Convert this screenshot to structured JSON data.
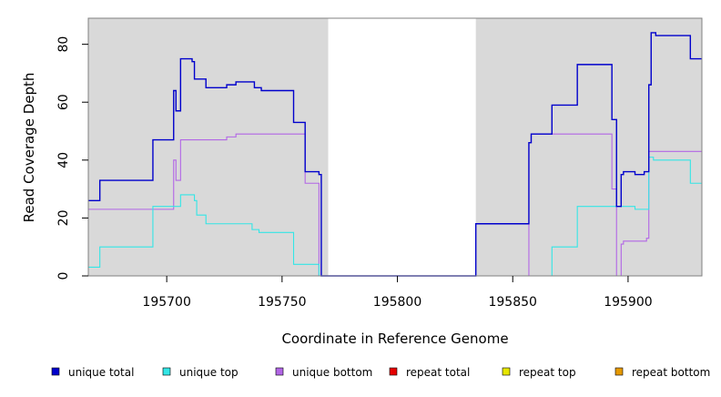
{
  "chart_data": {
    "type": "line",
    "xlabel": "Coordinate in Reference Genome",
    "ylabel": "Read Coverage Depth",
    "xlim": [
      195666,
      195932
    ],
    "ylim": [
      0,
      89
    ],
    "x_ticks": [
      195700,
      195750,
      195800,
      195850,
      195900
    ],
    "x_tick_labels": [
      "195700",
      "195750",
      "195800",
      "195850",
      "195900"
    ],
    "y_ticks": [
      0,
      20,
      40,
      60,
      80
    ],
    "y_tick_labels": [
      "0",
      "20",
      "40",
      "60",
      "80"
    ],
    "shaded_regions": [
      [
        195666,
        195770
      ],
      [
        195834,
        195932
      ]
    ],
    "background_shade_color": "#d9d9d9",
    "legend_placement": "bottom",
    "series": [
      {
        "name": "unique total",
        "color": "#0000cc",
        "points": [
          [
            195666,
            26
          ],
          [
            195671,
            26
          ],
          [
            195671,
            33
          ],
          [
            195694,
            33
          ],
          [
            195694,
            47
          ],
          [
            195703,
            47
          ],
          [
            195703,
            64
          ],
          [
            195704,
            64
          ],
          [
            195704,
            57
          ],
          [
            195706,
            57
          ],
          [
            195706,
            75
          ],
          [
            195711,
            75
          ],
          [
            195711,
            74
          ],
          [
            195712,
            74
          ],
          [
            195712,
            68
          ],
          [
            195717,
            68
          ],
          [
            195717,
            65
          ],
          [
            195726,
            65
          ],
          [
            195726,
            66
          ],
          [
            195730,
            66
          ],
          [
            195730,
            67
          ],
          [
            195738,
            67
          ],
          [
            195738,
            65
          ],
          [
            195741,
            65
          ],
          [
            195741,
            64
          ],
          [
            195755,
            64
          ],
          [
            195755,
            53
          ],
          [
            195760,
            53
          ],
          [
            195760,
            36
          ],
          [
            195766,
            36
          ],
          [
            195766,
            35
          ],
          [
            195767,
            35
          ],
          [
            195767,
            0
          ],
          [
            195834,
            0
          ],
          [
            195834,
            18
          ],
          [
            195857,
            18
          ],
          [
            195857,
            46
          ],
          [
            195858,
            46
          ],
          [
            195858,
            49
          ],
          [
            195867,
            49
          ],
          [
            195867,
            59
          ],
          [
            195878,
            59
          ],
          [
            195878,
            73
          ],
          [
            195893,
            73
          ],
          [
            195893,
            54
          ],
          [
            195895,
            54
          ],
          [
            195895,
            24
          ],
          [
            195897,
            24
          ],
          [
            195897,
            35
          ],
          [
            195898,
            35
          ],
          [
            195898,
            36
          ],
          [
            195903,
            36
          ],
          [
            195903,
            35
          ],
          [
            195907,
            35
          ],
          [
            195907,
            36
          ],
          [
            195909,
            36
          ],
          [
            195909,
            66
          ],
          [
            195910,
            66
          ],
          [
            195910,
            84
          ],
          [
            195912,
            84
          ],
          [
            195912,
            83
          ],
          [
            195927,
            83
          ],
          [
            195927,
            75
          ],
          [
            195932,
            75
          ]
        ]
      },
      {
        "name": "unique top",
        "color": "#33e6e6",
        "points": [
          [
            195666,
            3
          ],
          [
            195671,
            3
          ],
          [
            195671,
            10
          ],
          [
            195694,
            10
          ],
          [
            195694,
            24
          ],
          [
            195706,
            24
          ],
          [
            195706,
            28
          ],
          [
            195712,
            28
          ],
          [
            195712,
            26
          ],
          [
            195713,
            26
          ],
          [
            195713,
            21
          ],
          [
            195717,
            21
          ],
          [
            195717,
            18
          ],
          [
            195737,
            18
          ],
          [
            195737,
            16
          ],
          [
            195740,
            16
          ],
          [
            195740,
            15
          ],
          [
            195755,
            15
          ],
          [
            195755,
            4
          ],
          [
            195766,
            4
          ],
          [
            195766,
            0
          ],
          [
            195867,
            0
          ],
          [
            195867,
            10
          ],
          [
            195878,
            10
          ],
          [
            195878,
            24
          ],
          [
            195903,
            24
          ],
          [
            195903,
            23
          ],
          [
            195909,
            23
          ],
          [
            195909,
            41
          ],
          [
            195911,
            41
          ],
          [
            195911,
            40
          ],
          [
            195927,
            40
          ],
          [
            195927,
            32
          ],
          [
            195932,
            32
          ]
        ]
      },
      {
        "name": "unique bottom",
        "color": "#b266e6",
        "points": [
          [
            195666,
            23
          ],
          [
            195703,
            23
          ],
          [
            195703,
            40
          ],
          [
            195704,
            40
          ],
          [
            195704,
            33
          ],
          [
            195706,
            33
          ],
          [
            195706,
            47
          ],
          [
            195726,
            47
          ],
          [
            195726,
            48
          ],
          [
            195730,
            48
          ],
          [
            195730,
            49
          ],
          [
            195760,
            49
          ],
          [
            195760,
            32
          ],
          [
            195766,
            32
          ],
          [
            195766,
            0
          ],
          [
            195857,
            0
          ],
          [
            195857,
            46
          ],
          [
            195858,
            46
          ],
          [
            195858,
            49
          ],
          [
            195893,
            49
          ],
          [
            195893,
            30
          ],
          [
            195895,
            30
          ],
          [
            195895,
            0
          ],
          [
            195897,
            0
          ],
          [
            195897,
            11
          ],
          [
            195898,
            11
          ],
          [
            195898,
            12
          ],
          [
            195908,
            12
          ],
          [
            195908,
            13
          ],
          [
            195909,
            13
          ],
          [
            195909,
            43
          ],
          [
            195932,
            43
          ]
        ]
      },
      {
        "name": "repeat total",
        "color": "#e60000",
        "points": [
          [
            195666,
            0
          ],
          [
            195932,
            0
          ]
        ]
      },
      {
        "name": "repeat top",
        "color": "#e6e600",
        "points": [
          [
            195666,
            0
          ],
          [
            195932,
            0
          ]
        ]
      },
      {
        "name": "repeat bottom",
        "color": "#e69900",
        "points": [
          [
            195666,
            0
          ],
          [
            195932,
            0
          ]
        ]
      }
    ]
  }
}
